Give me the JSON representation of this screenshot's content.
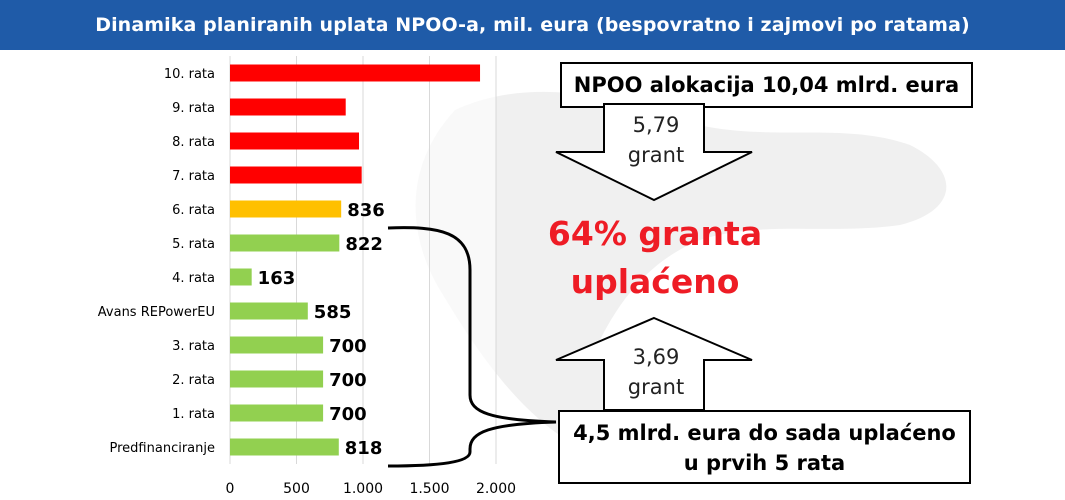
{
  "header": {
    "title": "Dinamika planiranih uplata NPOO-a, mil. eura (bespovratno i zajmovi po ratama)"
  },
  "colors": {
    "header_bg": "#1f5ba8",
    "red": "#ff0000",
    "orange": "#ffc000",
    "green": "#92d050",
    "accent_text": "#ee1c25"
  },
  "chart_data": {
    "type": "bar",
    "orientation": "horizontal",
    "categories": [
      "10. rata",
      "9. rata",
      "8. rata",
      "7. rata",
      "6. rata",
      "5. rata",
      "4. rata",
      "Avans REPowerEU",
      "3. rata",
      "2. rata",
      "1. rata",
      "Predfinanciranje"
    ],
    "values": [
      1880,
      870,
      970,
      990,
      836,
      822,
      163,
      585,
      700,
      700,
      700,
      818
    ],
    "data_labels": [
      "",
      "",
      "",
      "",
      "836",
      "822",
      "163",
      "585",
      "700",
      "700",
      "700",
      "818"
    ],
    "bar_colors": [
      "red",
      "red",
      "red",
      "red",
      "orange",
      "green",
      "green",
      "green",
      "green",
      "green",
      "green",
      "green"
    ],
    "xlim": [
      0,
      2000
    ],
    "xticks": [
      0,
      500,
      1000,
      1500,
      2000
    ],
    "xtick_labels": [
      "0",
      "500",
      "1.000",
      "1.500",
      "2.000"
    ],
    "grid": true
  },
  "callouts": {
    "top_box": "NPOO alokacija 10,04 mlrd. eura",
    "arrow_down_value": "5,79",
    "arrow_down_unit": "grant",
    "center_line1": "64% granta",
    "center_line2": "uplaćeno",
    "arrow_up_value": "3,69",
    "arrow_up_unit": "grant",
    "bottom_box_line1": "4,5 mlrd. eura do sada uplaćeno",
    "bottom_box_line2": "u prvih 5 rata"
  }
}
